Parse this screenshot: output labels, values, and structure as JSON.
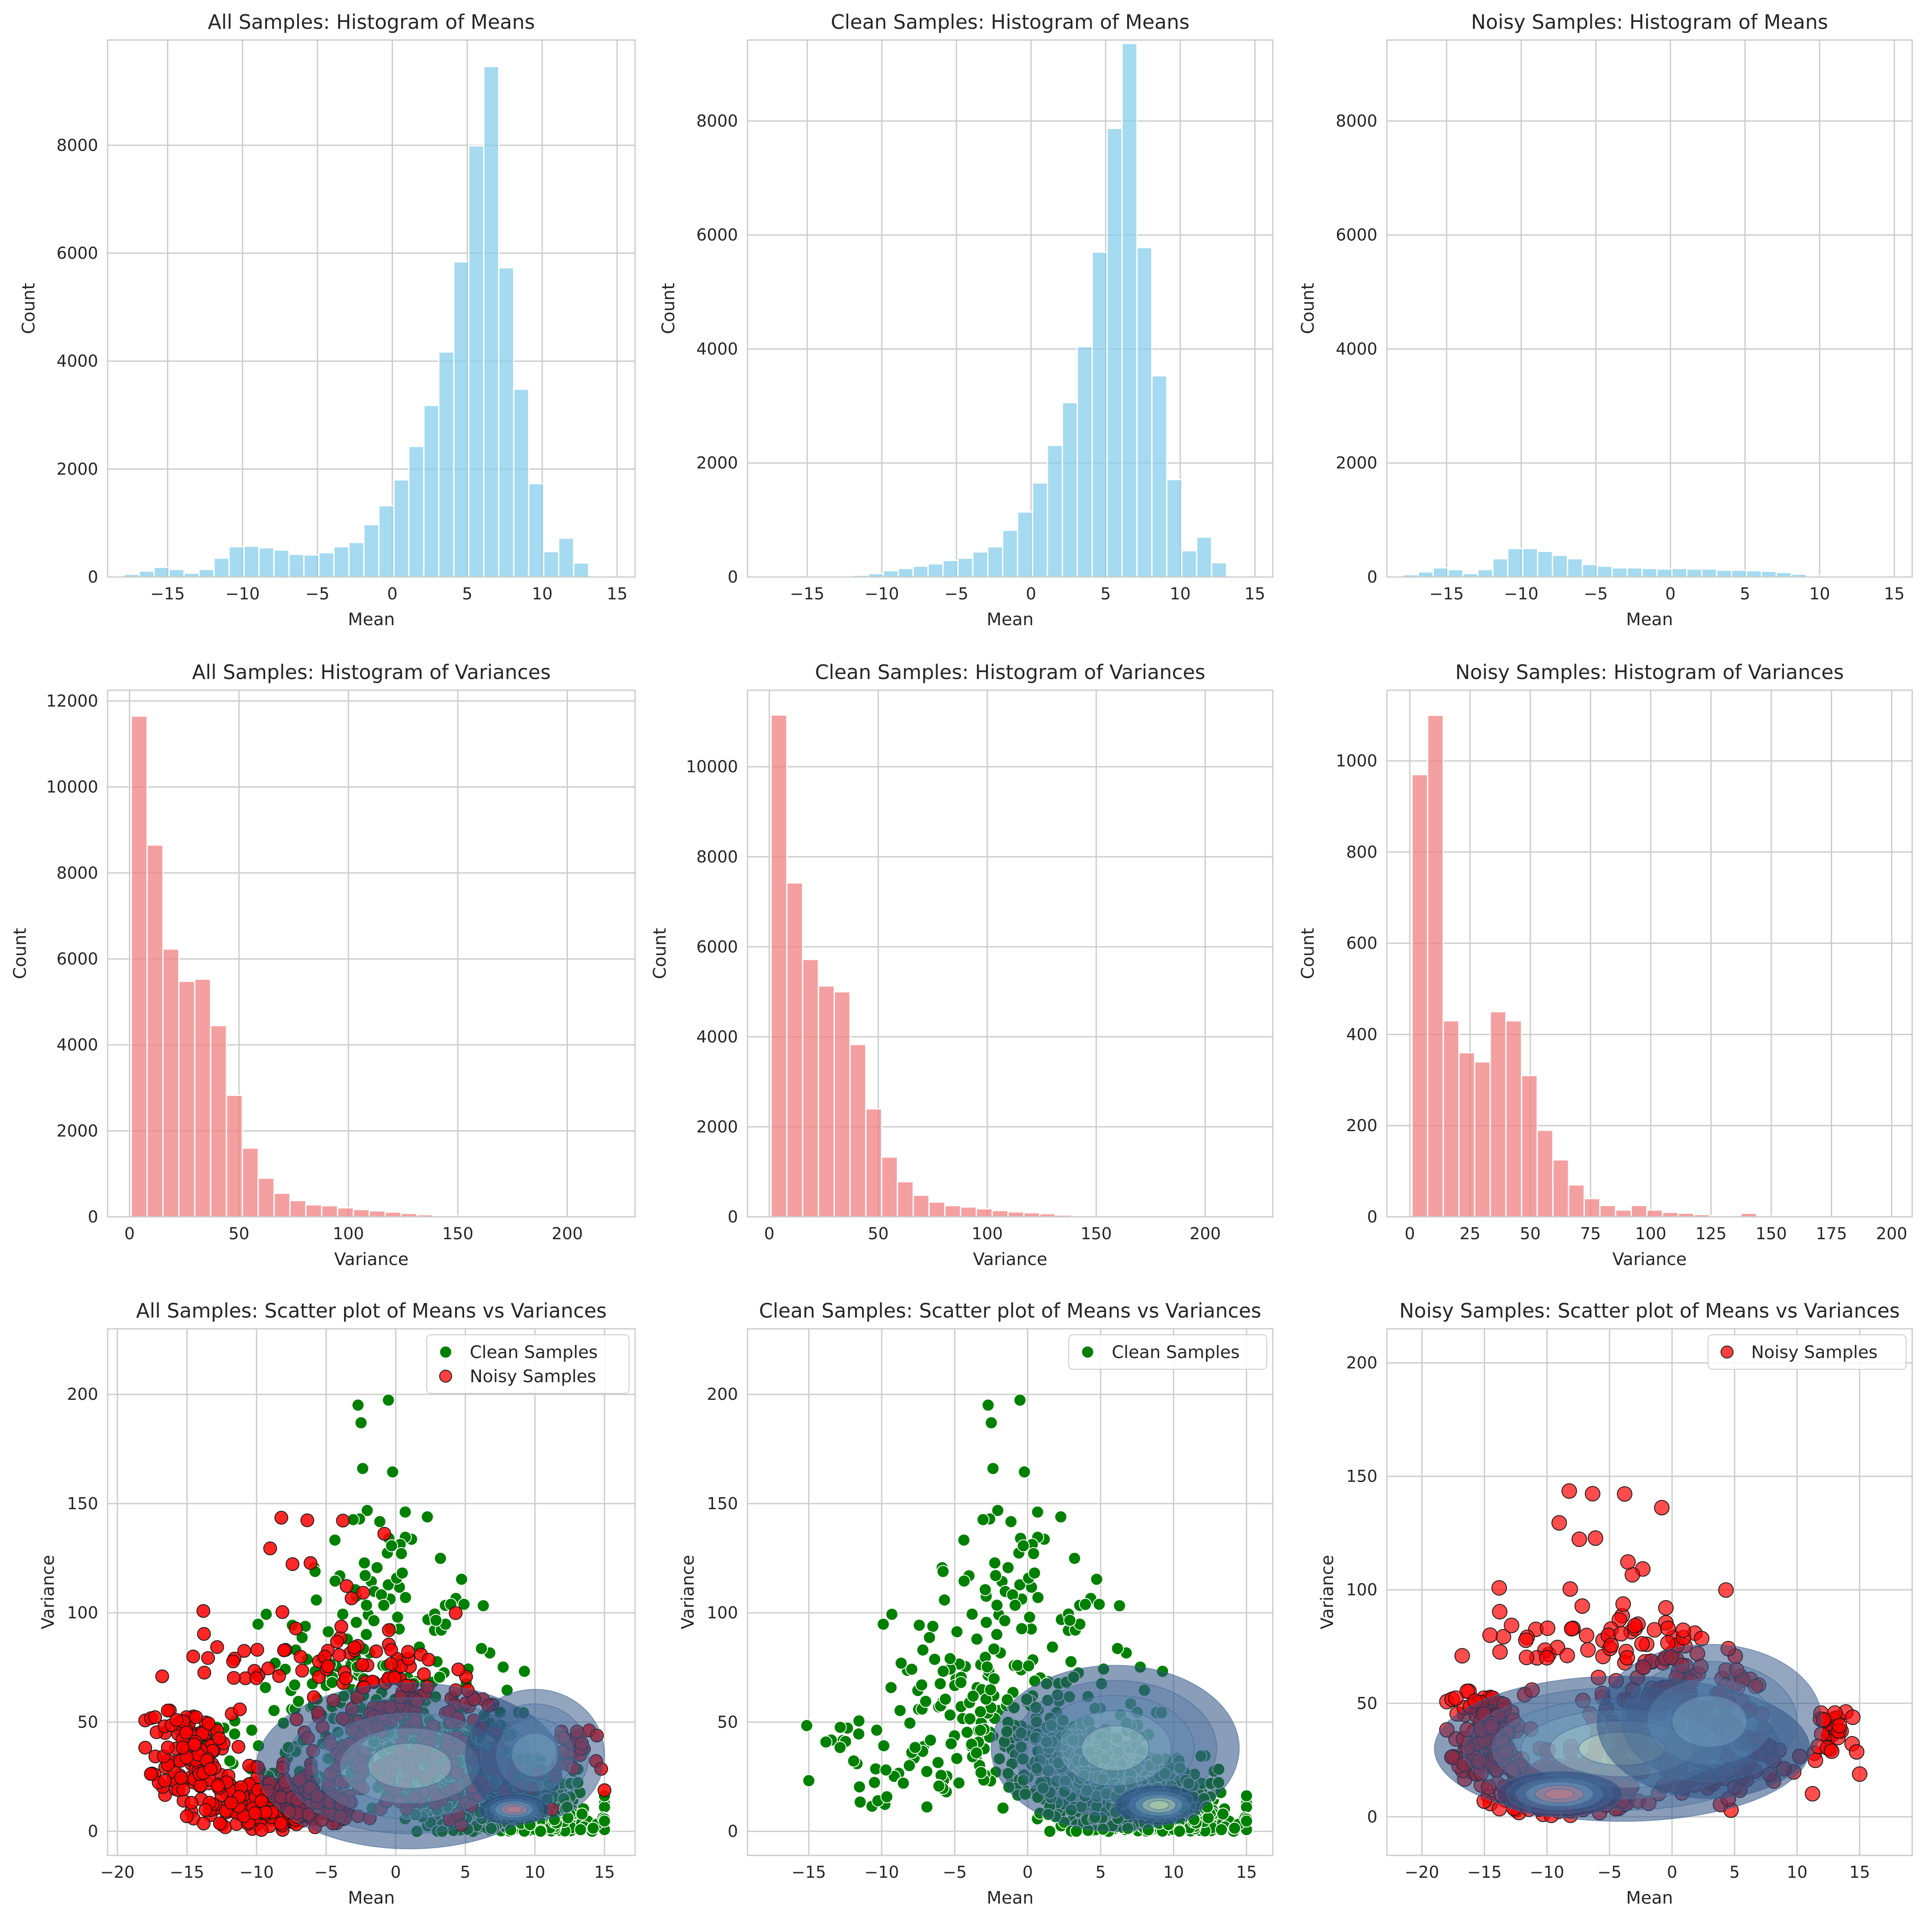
{
  "colors": {
    "hist_mean": "#87ceeb",
    "hist_var": "#f08080",
    "clean": "#008000",
    "noisy": "#ff0000",
    "grid": "#cccccc",
    "kde": [
      "#2a4d80",
      "#3e6a9b",
      "#5b8db5",
      "#83b2c9",
      "#b3d7d0",
      "#e6f2c4"
    ]
  },
  "chart_data": [
    {
      "type": "bar",
      "title": "All Samples: Histogram of Means",
      "xlabel": "Mean",
      "ylabel": "Count",
      "xlim": [
        -19,
        16.2
      ],
      "ylim": [
        0,
        9950
      ],
      "xticks": [
        -15,
        -10,
        -5,
        0,
        5,
        10,
        15
      ],
      "yticks": [
        0,
        2000,
        4000,
        6000,
        8000
      ],
      "bin_start": -17.9,
      "bin_width": 1.0,
      "values": [
        50,
        110,
        180,
        140,
        70,
        140,
        350,
        560,
        570,
        540,
        500,
        420,
        410,
        450,
        560,
        640,
        970,
        1320,
        1800,
        2420,
        3180,
        4170,
        5840,
        7990,
        9460,
        5730,
        3480,
        1730,
        470,
        720,
        260
      ],
      "color": "hist_mean"
    },
    {
      "type": "bar",
      "title": "Clean Samples: Histogram of Means",
      "xlabel": "Mean",
      "ylabel": "Count",
      "xlim": [
        -19,
        16.2
      ],
      "ylim": [
        0,
        9420
      ],
      "xticks": [
        -15,
        -10,
        -5,
        0,
        5,
        10,
        15
      ],
      "yticks": [
        0,
        2000,
        4000,
        6000,
        8000
      ],
      "bin_start": -17.9,
      "bin_width": 1.0,
      "values": [
        5,
        5,
        5,
        5,
        10,
        10,
        30,
        60,
        110,
        150,
        190,
        230,
        290,
        330,
        440,
        530,
        820,
        1140,
        1650,
        2310,
        3060,
        4040,
        5700,
        7870,
        9360,
        5780,
        3530,
        1710,
        460,
        700,
        250
      ],
      "color": "hist_mean"
    },
    {
      "type": "bar",
      "title": "Noisy Samples: Histogram of Means",
      "xlabel": "Mean",
      "ylabel": "Count",
      "xlim": [
        -19,
        16.2
      ],
      "ylim": [
        0,
        9420
      ],
      "xticks": [
        -15,
        -10,
        -5,
        0,
        5,
        10,
        15
      ],
      "yticks": [
        0,
        2000,
        4000,
        6000,
        8000
      ],
      "bin_start": -17.9,
      "bin_width": 1.0,
      "values": [
        40,
        90,
        160,
        130,
        60,
        130,
        320,
        500,
        500,
        450,
        380,
        320,
        220,
        190,
        160,
        160,
        150,
        140,
        150,
        140,
        140,
        120,
        120,
        110,
        100,
        80,
        50,
        20,
        10,
        10,
        5
      ],
      "color": "hist_mean"
    },
    {
      "type": "bar",
      "title": "All Samples: Histogram of Variances",
      "xlabel": "Variance",
      "ylabel": "Count",
      "xlim": [
        -10,
        231
      ],
      "ylim": [
        0,
        12250
      ],
      "xticks": [
        0,
        50,
        100,
        150,
        200
      ],
      "yticks": [
        0,
        2000,
        4000,
        6000,
        8000,
        10000,
        12000
      ],
      "bin_start": 0.8,
      "bin_width": 7.25,
      "values": [
        11650,
        8650,
        6230,
        5480,
        5530,
        4450,
        2830,
        1600,
        900,
        550,
        380,
        280,
        260,
        210,
        170,
        140,
        110,
        80,
        50,
        30,
        20,
        15,
        10,
        8,
        5,
        4,
        3,
        2,
        2,
        2
      ],
      "color": "hist_var"
    },
    {
      "type": "bar",
      "title": "Clean Samples: Histogram of Variances",
      "xlabel": "Variance",
      "ylabel": "Count",
      "xlim": [
        -10,
        231
      ],
      "ylim": [
        0,
        11700
      ],
      "xticks": [
        0,
        50,
        100,
        150,
        200
      ],
      "yticks": [
        0,
        2000,
        4000,
        6000,
        8000,
        10000
      ],
      "bin_start": 0.8,
      "bin_width": 7.25,
      "values": [
        11150,
        7420,
        5720,
        5130,
        5000,
        3830,
        2400,
        1330,
        780,
        480,
        330,
        250,
        220,
        180,
        140,
        110,
        90,
        70,
        40,
        25,
        15,
        10,
        8,
        5,
        4,
        3,
        2,
        2,
        2,
        2
      ],
      "color": "hist_var"
    },
    {
      "type": "bar",
      "title": "Noisy Samples: Histogram of Variances",
      "xlabel": "Variance",
      "ylabel": "Count",
      "xlim": [
        -9.5,
        208.5
      ],
      "ylim": [
        0,
        1155
      ],
      "xticks": [
        0,
        25,
        50,
        75,
        100,
        125,
        150,
        175,
        200
      ],
      "yticks": [
        0,
        200,
        400,
        600,
        800,
        1000
      ],
      "bin_start": 0.9,
      "bin_width": 6.5,
      "values": [
        970,
        1100,
        430,
        360,
        340,
        450,
        430,
        310,
        190,
        125,
        70,
        40,
        25,
        15,
        25,
        15,
        10,
        8,
        5,
        3,
        3,
        8,
        2,
        2,
        2,
        2,
        1,
        1,
        1,
        1
      ],
      "color": "hist_var"
    },
    {
      "type": "scatter",
      "title": "All Samples: Scatter plot of Means vs Variances",
      "xlabel": "Mean",
      "ylabel": "Variance",
      "xlim": [
        -20.7,
        17.2
      ],
      "ylim": [
        -11,
        230
      ],
      "xticks": [
        -20,
        -15,
        -10,
        -5,
        0,
        5,
        10,
        15
      ],
      "yticks": [
        0,
        50,
        100,
        150,
        200
      ],
      "legend": [
        "Clean Samples",
        "Noisy Samples"
      ],
      "legend_position": "top-right",
      "kde": true
    },
    {
      "type": "scatter",
      "title": "Clean Samples: Scatter plot of Means vs Variances",
      "xlabel": "Mean",
      "ylabel": "Variance",
      "xlim": [
        -19.2,
        16.8
      ],
      "ylim": [
        -11,
        230
      ],
      "xticks": [
        -15,
        -10,
        -5,
        0,
        5,
        10,
        15
      ],
      "yticks": [
        0,
        50,
        100,
        150,
        200
      ],
      "legend": [
        "Clean Samples"
      ],
      "legend_position": "top-right",
      "kde": true
    },
    {
      "type": "scatter",
      "title": "Noisy Samples: Scatter plot of Means vs Variances",
      "xlabel": "Mean",
      "ylabel": "Variance",
      "xlim": [
        -22.8,
        19.2
      ],
      "ylim": [
        -17,
        215
      ],
      "xticks": [
        -20,
        -15,
        -10,
        -5,
        0,
        5,
        10,
        15
      ],
      "yticks": [
        0,
        50,
        100,
        150,
        200
      ],
      "legend": [
        "Noisy Samples"
      ],
      "legend_position": "top-right",
      "kde": true
    }
  ]
}
